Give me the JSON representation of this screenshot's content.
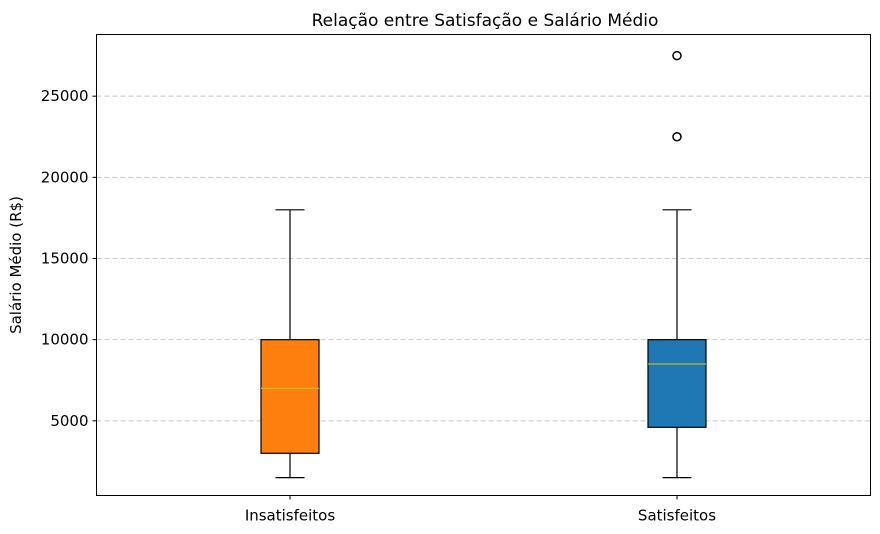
{
  "chart_data": {
    "type": "box",
    "title": "Relação entre Satisfação e Salário Médio",
    "xlabel": "",
    "ylabel": "Salário Médio (R$)",
    "ylim": [
      400,
      28800
    ],
    "yticks": [
      5000,
      10000,
      15000,
      20000,
      25000
    ],
    "grid": "y-dashed",
    "categories": [
      "Insatisfeitos",
      "Satisfeitos"
    ],
    "boxes": [
      {
        "category": "Insatisfeitos",
        "color": "#ff7f0e",
        "whisker_low": 1500,
        "q1": 3000,
        "median": 7000,
        "q3": 10000,
        "whisker_high": 18000,
        "outliers": []
      },
      {
        "category": "Satisfeitos",
        "color": "#1f77b4",
        "whisker_low": 1500,
        "q1": 4600,
        "median": 8500,
        "q3": 10000,
        "whisker_high": 18000,
        "outliers": [
          22500,
          27500
        ]
      }
    ],
    "median_color": "#bcbd22"
  }
}
